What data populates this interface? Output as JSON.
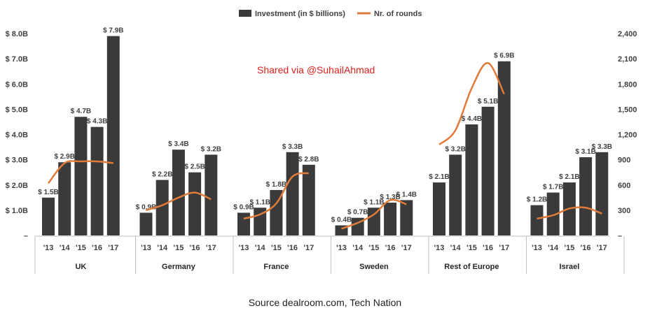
{
  "chart_data": {
    "type": "bar",
    "series": [
      {
        "name": "Investment (in $ billions)",
        "kind": "bar",
        "axis": "left",
        "color": "#3a3a3a",
        "values": [
          1.5,
          2.9,
          4.7,
          4.3,
          7.9,
          0.9,
          2.2,
          3.4,
          2.5,
          3.2,
          0.9,
          1.1,
          1.8,
          3.3,
          2.8,
          0.4,
          0.7,
          1.1,
          1.3,
          1.4,
          2.1,
          3.2,
          4.4,
          5.1,
          6.9,
          1.2,
          1.7,
          2.1,
          3.1,
          3.3
        ],
        "data_labels": [
          "$ 1.5B",
          "$ 2.9B",
          "$ 4.7B",
          "$ 4.3B",
          "$ 7.9B",
          "$ 0.9B",
          "$ 2.2B",
          "$ 3.4B",
          "$ 2.5B",
          "$ 3.2B",
          "$ 0.9B",
          "$ 1.1B",
          "$ 1.8B",
          "$ 3.3B",
          "$ 2.8B",
          "$ 0.4B",
          "$ 0.7B",
          "$ 1.1B",
          "$ 1.3B",
          "$ 1.4B",
          "$ 2.1B",
          "$ 3.2B",
          "$ 4.4B",
          "$ 5.1B",
          "$ 6.9B",
          "$ 1.2B",
          "$ 1.7B",
          "$ 2.1B",
          "$ 3.1B",
          "$ 3.3B"
        ]
      },
      {
        "name": "Nr. of rounds",
        "kind": "line",
        "axis": "right",
        "color": "#e07b39",
        "values": [
          620,
          860,
          880,
          880,
          860,
          300,
          360,
          450,
          510,
          430,
          200,
          250,
          380,
          700,
          740,
          80,
          150,
          250,
          420,
          370,
          1080,
          1250,
          1750,
          2050,
          1680,
          200,
          240,
          320,
          330,
          260
        ]
      }
    ],
    "groups": [
      {
        "name": "UK",
        "categories": [
          "'13",
          "'14",
          "'15",
          "'16",
          "'17"
        ]
      },
      {
        "name": "Germany",
        "categories": [
          "'13",
          "'14",
          "'15",
          "'16",
          "'17"
        ]
      },
      {
        "name": "France",
        "categories": [
          "'13",
          "'14",
          "'15",
          "'16",
          "'17"
        ]
      },
      {
        "name": "Sweden",
        "categories": [
          "'13",
          "'14",
          "'15",
          "'16",
          "'17"
        ]
      },
      {
        "name": "Rest of Europe",
        "categories": [
          "'13",
          "'14",
          "'15",
          "'16",
          "'17"
        ]
      },
      {
        "name": "Israel",
        "categories": [
          "'13",
          "'14",
          "'15",
          "'16",
          "'17"
        ]
      }
    ],
    "ylim_left": [
      0,
      8
    ],
    "yticks_left": [
      "–",
      "$ 1.0B",
      "$ 2.0B",
      "$ 3.0B",
      "$ 4.0B",
      "$ 5.0B",
      "$ 6.0B",
      "$ 7.0B",
      "$ 8.0B"
    ],
    "ylim_right": [
      0,
      2400
    ],
    "yticks_right": [
      "–",
      "300",
      "600",
      "900",
      "1,200",
      "1,500",
      "1,800",
      "2,100",
      "2,400"
    ],
    "legend_position": "top-center",
    "grid": false
  },
  "watermark": "Shared via @SuhailAhmad",
  "source": "Source dealroom.com, Tech Nation"
}
